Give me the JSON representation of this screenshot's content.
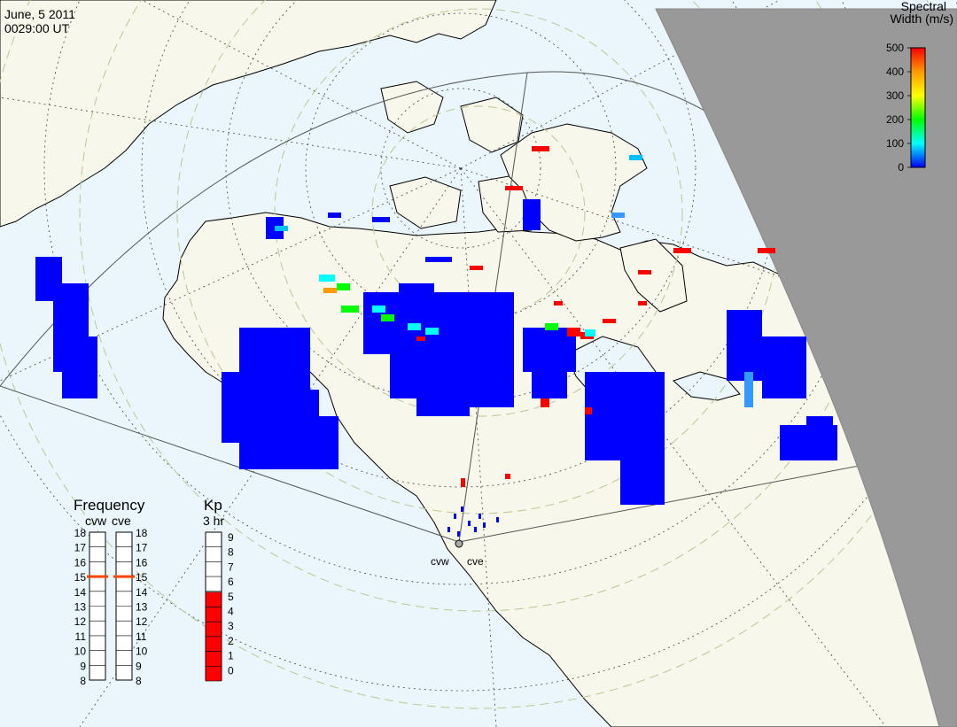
{
  "header": {
    "date": "June, 5 2011",
    "time": "0029:00 UT"
  },
  "colorbar": {
    "title_line1": "Spectral",
    "title_line2": "Width (m/s)",
    "ticks": [
      "500",
      "400",
      "300",
      "200",
      "100",
      "0"
    ],
    "stops": [
      "#ff0000",
      "#ff9900",
      "#ffff00",
      "#00ff00",
      "#00ffff",
      "#0000ff"
    ]
  },
  "frequency_panel": {
    "title": "Frequency",
    "radar_left": "cvw",
    "radar_right": "cve",
    "scale_labels": [
      "18",
      "17",
      "16",
      "15",
      "14",
      "13",
      "12",
      "11",
      "10",
      "9",
      "8"
    ],
    "cvw_value": 15,
    "cve_value": 15
  },
  "kp_panel": {
    "title": "Kp",
    "subtitle": "3 hr",
    "scale_labels": [
      "9",
      "8",
      "7",
      "6",
      "5",
      "4",
      "3",
      "2",
      "1",
      "0"
    ],
    "value": 6
  },
  "stations": {
    "west": "cvw",
    "east": "cve"
  },
  "colors": {
    "ocean": "#eaf6fb",
    "land": "#f7f7ec",
    "night": "#999999",
    "coast": "#000000",
    "grid": "#000000",
    "low_width": "#0000ff",
    "high_width": "#ff0000",
    "marker_line": "#ff4400"
  }
}
